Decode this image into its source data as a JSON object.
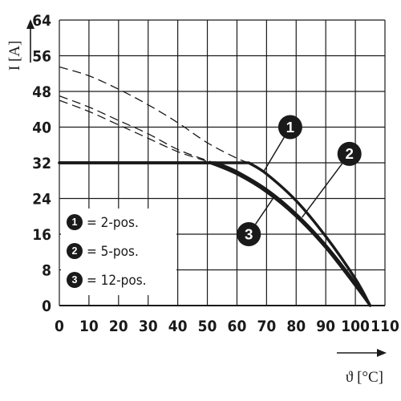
{
  "chart_data": {
    "type": "line",
    "xlabel": "ϑ [°C]",
    "ylabel": "I [A]",
    "xlim": [
      0,
      110
    ],
    "ylim": [
      0,
      64
    ],
    "x_ticks": [
      "0",
      "10",
      "20",
      "30",
      "40",
      "50",
      "60",
      "70",
      "80",
      "90",
      "100",
      "110"
    ],
    "y_ticks": [
      "0",
      "8",
      "16",
      "24",
      "32",
      "40",
      "48",
      "56",
      "64"
    ],
    "grid": true,
    "legend": [
      {
        "badge": "1",
        "label": "= 2-pos."
      },
      {
        "badge": "2",
        "label": "= 5-pos."
      },
      {
        "badge": "3",
        "label": "= 12-pos."
      }
    ],
    "series": [
      {
        "badge": "1",
        "derating_curve": [
          [
            0,
            32
          ],
          [
            64,
            32
          ],
          [
            70,
            29.5
          ],
          [
            80,
            23.5
          ],
          [
            90,
            15.5
          ],
          [
            100,
            6
          ],
          [
            105,
            0
          ]
        ],
        "reference_curve_dashed": [
          [
            0,
            53.5
          ],
          [
            10,
            51.5
          ],
          [
            20,
            48.5
          ],
          [
            30,
            45
          ],
          [
            40,
            41
          ],
          [
            50,
            36.5
          ],
          [
            60,
            33
          ],
          [
            64,
            32
          ]
        ]
      },
      {
        "badge": "2",
        "derating_curve": [
          [
            0,
            32
          ],
          [
            53,
            32
          ],
          [
            60,
            30
          ],
          [
            70,
            26
          ],
          [
            80,
            20.5
          ],
          [
            90,
            13.5
          ],
          [
            100,
            5
          ],
          [
            105,
            0
          ]
        ],
        "reference_curve_dashed": [
          [
            0,
            47
          ],
          [
            10,
            44.5
          ],
          [
            20,
            41.5
          ],
          [
            30,
            38.5
          ],
          [
            40,
            35
          ],
          [
            50,
            32.5
          ],
          [
            53,
            32
          ]
        ]
      },
      {
        "badge": "3",
        "derating_curve": [
          [
            0,
            32
          ],
          [
            51,
            32
          ],
          [
            60,
            29.5
          ],
          [
            70,
            25.5
          ],
          [
            80,
            20
          ],
          [
            90,
            13
          ],
          [
            100,
            4.5
          ],
          [
            105,
            0
          ]
        ],
        "reference_curve_dashed": [
          [
            0,
            46
          ],
          [
            10,
            43.5
          ],
          [
            20,
            40.5
          ],
          [
            30,
            37.5
          ],
          [
            40,
            34.5
          ],
          [
            50,
            32.3
          ],
          [
            51,
            32
          ]
        ]
      }
    ],
    "callouts": [
      {
        "badge": "1",
        "near": [
          78,
          40
        ]
      },
      {
        "badge": "2",
        "near": [
          98,
          34
        ]
      },
      {
        "badge": "3",
        "near": [
          64,
          16
        ]
      }
    ]
  }
}
